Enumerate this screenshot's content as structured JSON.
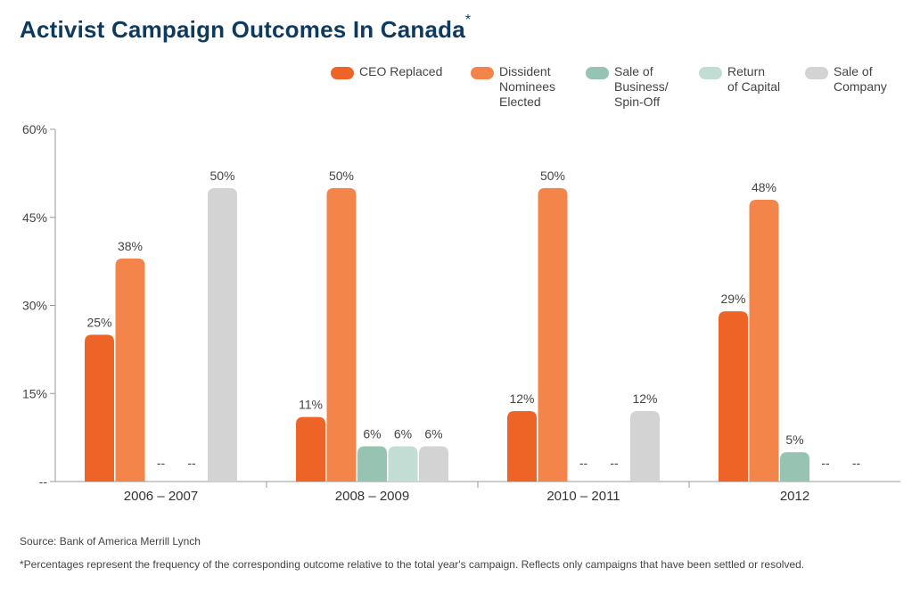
{
  "title": "Activist Campaign Outcomes In Canada",
  "title_mark": "*",
  "legend": [
    {
      "label": "CEO Replaced",
      "color": "#ee6426"
    },
    {
      "label": "Dissident\nNominees\nElected",
      "color": "#f3854a"
    },
    {
      "label": "Sale of\nBusiness/\nSpin-Off",
      "color": "#97c3b3"
    },
    {
      "label": "Return\nof Capital",
      "color": "#c2ded4"
    },
    {
      "label": "Sale of\nCompany",
      "color": "#d3d3d3"
    }
  ],
  "chart_data": {
    "type": "bar",
    "categories": [
      "2006 – 2007",
      "2008 – 2009",
      "2010 – 2011",
      "2012"
    ],
    "series": [
      {
        "name": "CEO Replaced",
        "color": "#ee6426",
        "values": [
          25,
          11,
          12,
          29
        ],
        "labels": [
          "25%",
          "11%",
          "12%",
          "29%"
        ]
      },
      {
        "name": "Dissident Nominees Elected",
        "color": "#f3854a",
        "values": [
          38,
          50,
          50,
          48
        ],
        "labels": [
          "38%",
          "50%",
          "50%",
          "48%"
        ]
      },
      {
        "name": "Sale of Business/ Spin-Off",
        "color": "#97c3b3",
        "values": [
          null,
          6,
          null,
          5
        ],
        "labels": [
          "--",
          "6%",
          "--",
          "5%"
        ]
      },
      {
        "name": "Return of Capital",
        "color": "#c2ded4",
        "values": [
          null,
          6,
          null,
          null
        ],
        "labels": [
          "--",
          "6%",
          "--",
          "--"
        ]
      },
      {
        "name": "Sale of Company",
        "color": "#d3d3d3",
        "values": [
          50,
          6,
          12,
          null
        ],
        "labels": [
          "50%",
          "6%",
          "12%",
          "--"
        ]
      }
    ],
    "yticks": [
      "--",
      "15%",
      "30%",
      "45%",
      "60%"
    ],
    "ylim": [
      0,
      60
    ],
    "grid": false
  },
  "footnotes": {
    "source": "Source: Bank of America Merrill Lynch",
    "note": "*Percentages represent the frequency of the corresponding outcome relative to the total year's campaign. Reflects only campaigns that have been settled or resolved."
  }
}
